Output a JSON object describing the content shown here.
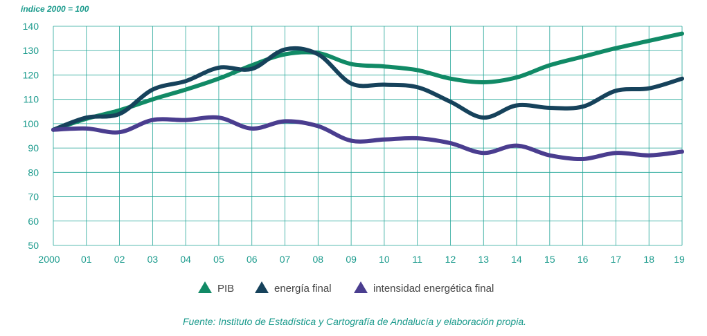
{
  "chart_data": {
    "type": "line",
    "y_unit_label": "índice 2000 = 100",
    "categories": [
      "2000",
      "01",
      "02",
      "03",
      "04",
      "05",
      "06",
      "07",
      "08",
      "09",
      "10",
      "11",
      "12",
      "13",
      "14",
      "15",
      "16",
      "17",
      "18",
      "19"
    ],
    "ylim": [
      50,
      140
    ],
    "yticks": [
      140,
      130,
      120,
      110,
      100,
      90,
      80,
      70,
      60,
      50
    ],
    "grid": true,
    "series": [
      {
        "name": "PIB",
        "color": "#118a66",
        "values": [
          97.5,
          102,
          105.5,
          110,
          114,
          118.5,
          124,
          128.5,
          129,
          124.5,
          123.5,
          122,
          118.5,
          117,
          119,
          124,
          127.5,
          131,
          134,
          137
        ]
      },
      {
        "name": "energía final",
        "color": "#16425b",
        "values": [
          97.5,
          102.5,
          104,
          114,
          117.5,
          123,
          122.5,
          130.5,
          128.5,
          116.5,
          116,
          115,
          109,
          102.5,
          107.5,
          106.5,
          107,
          113.5,
          114.5,
          118.5
        ]
      },
      {
        "name": "intensidad energética final",
        "color": "#4a3d8f",
        "values": [
          97.5,
          98,
          96.5,
          101.5,
          101.5,
          102.5,
          98,
          101,
          99,
          93,
          93.5,
          94,
          92,
          88,
          91,
          87,
          85.5,
          88,
          87,
          88.5
        ]
      }
    ],
    "source": "Fuente: Instituto de Estadística y Cartografía de Andalucía y elaboración propia."
  }
}
